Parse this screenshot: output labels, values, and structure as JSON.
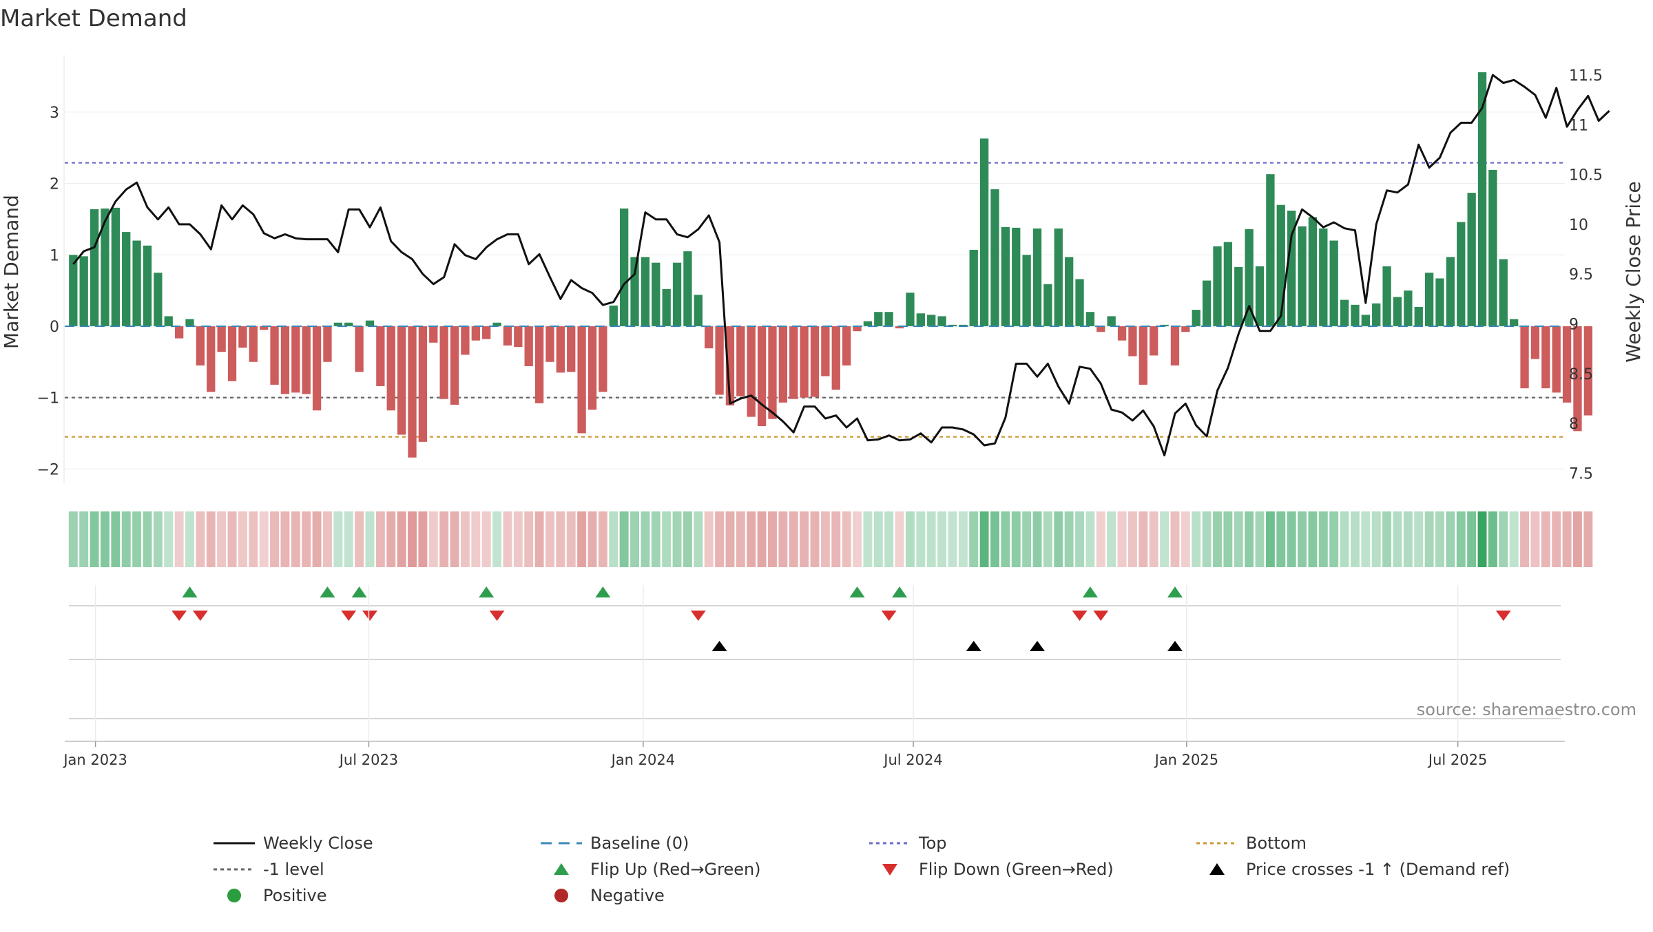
{
  "chart_data": {
    "type": "bar",
    "title": "Market Demand",
    "ylabel": "Market Demand",
    "y2label": "Weekly Close Price",
    "source": "source: sharemaestro.com",
    "ylim": [
      -2.2,
      3.8
    ],
    "y2lim": [
      7.4,
      11.7
    ],
    "yticks": [
      -2,
      -1,
      0,
      1,
      2,
      3
    ],
    "ytick_labels": [
      "−2",
      "−1",
      "0",
      "1",
      "2",
      "3"
    ],
    "y2ticks": [
      7.5,
      8,
      8.5,
      9,
      9.5,
      10,
      10.5,
      11,
      11.5
    ],
    "y2tick_labels": [
      "7.5",
      "8",
      "8.5",
      "9",
      "9.5",
      "10",
      "10.5",
      "11",
      "11.5"
    ],
    "x_range": [
      -0.8,
      140.8
    ],
    "date_ticks": [
      {
        "label": "Jan 2023",
        "x": 2.1
      },
      {
        "label": "Jul 2023",
        "x": 27.9
      },
      {
        "label": "Jan 2024",
        "x": 53.8
      },
      {
        "label": "Jul 2024",
        "x": 79.3
      },
      {
        "label": "Jan 2025",
        "x": 105.1
      },
      {
        "label": "Jul 2025",
        "x": 130.7
      }
    ],
    "reference_lines": {
      "baseline": 0,
      "top": 2.29,
      "minus1": -1,
      "bottom": -1.55
    },
    "demand": [
      1.0,
      0.98,
      1.64,
      1.65,
      1.66,
      1.32,
      1.2,
      1.13,
      0.75,
      0.14,
      -0.17,
      0.1,
      -0.55,
      -0.92,
      -0.36,
      -0.77,
      -0.3,
      -0.5,
      -0.05,
      -0.82,
      -0.95,
      -0.93,
      -0.95,
      -1.18,
      -0.5,
      0.05,
      0.05,
      -0.64,
      0.08,
      -0.84,
      -1.18,
      -1.52,
      -1.84,
      -1.62,
      -0.23,
      -1.02,
      -1.1,
      -0.4,
      -0.2,
      -0.18,
      0.05,
      -0.27,
      -0.29,
      -0.56,
      -1.08,
      -0.5,
      -0.65,
      -0.64,
      -1.5,
      -1.17,
      -0.92,
      0.29,
      1.65,
      0.97,
      0.97,
      0.89,
      0.52,
      0.89,
      1.05,
      0.44,
      -0.31,
      -0.96,
      -1.11,
      -0.98,
      -1.27,
      -1.4,
      -1.3,
      -1.07,
      -1.02,
      -1.0,
      -0.99,
      -0.7,
      -0.89,
      -0.55,
      -0.07,
      0.07,
      0.2,
      0.2,
      -0.03,
      0.47,
      0.18,
      0.16,
      0.14,
      0.02,
      0.02,
      1.07,
      2.63,
      1.92,
      1.39,
      1.38,
      1.0,
      1.37,
      0.59,
      1.37,
      0.97,
      0.66,
      0.2,
      -0.08,
      0.14,
      -0.2,
      -0.42,
      -0.82,
      -0.41,
      0.02,
      -0.55,
      -0.08,
      0.23,
      0.64,
      1.12,
      1.18,
      0.83,
      1.36,
      0.84,
      2.13,
      1.7,
      1.62,
      1.4,
      1.53,
      1.37,
      1.2,
      0.37,
      0.3,
      0.16,
      0.32,
      0.84,
      0.41,
      0.5,
      0.27,
      0.75,
      0.67,
      0.97,
      1.46,
      1.87,
      3.56,
      2.19,
      0.94,
      0.1,
      -0.87,
      -0.46,
      -0.87,
      -0.93,
      -1.07,
      -1.47,
      -1.25
    ],
    "weekly_close": [
      9.6,
      9.73,
      9.77,
      10.03,
      10.23,
      10.35,
      10.42,
      10.17,
      10.05,
      10.17,
      10.0,
      10.0,
      9.9,
      9.75,
      10.19,
      10.05,
      10.19,
      10.1,
      9.91,
      9.86,
      9.9,
      9.86,
      9.85,
      9.85,
      9.85,
      9.72,
      10.15,
      10.15,
      9.97,
      10.17,
      9.83,
      9.72,
      9.65,
      9.5,
      9.4,
      9.47,
      9.8,
      9.69,
      9.65,
      9.77,
      9.85,
      9.9,
      9.9,
      9.6,
      9.7,
      9.47,
      9.25,
      9.44,
      9.36,
      9.31,
      9.19,
      9.22,
      9.4,
      9.5,
      10.12,
      10.05,
      10.05,
      9.9,
      9.87,
      9.95,
      10.09,
      9.82,
      8.2,
      8.25,
      8.28,
      8.19,
      8.11,
      8.02,
      7.91,
      8.17,
      8.17,
      8.05,
      8.08,
      7.96,
      8.05,
      7.83,
      7.84,
      7.88,
      7.83,
      7.84,
      7.9,
      7.81,
      7.96,
      7.96,
      7.94,
      7.89,
      7.78,
      7.8,
      8.06,
      8.6,
      8.6,
      8.47,
      8.6,
      8.37,
      8.2,
      8.57,
      8.55,
      8.4,
      8.14,
      8.11,
      8.03,
      8.13,
      7.97,
      7.68,
      8.1,
      8.2,
      7.98,
      7.87,
      8.33,
      8.56,
      8.9,
      9.18,
      8.93,
      8.93,
      9.08,
      9.89,
      10.15,
      10.07,
      9.97,
      10.02,
      9.96,
      9.94,
      9.21,
      10.0,
      10.34,
      10.32,
      10.4,
      10.8,
      10.57,
      10.67,
      10.92,
      11.02,
      11.02,
      11.17,
      11.5,
      11.42,
      11.45,
      11.38,
      11.3,
      11.07,
      11.37,
      10.98,
      11.15,
      11.29,
      11.04,
      11.14
    ],
    "heat_strip": {
      "cap": 3.56
    },
    "flip_up": [
      11,
      24,
      27,
      39,
      50,
      74,
      78,
      96,
      104
    ],
    "flip_down": [
      10,
      12,
      26,
      28,
      40,
      59,
      77,
      95,
      97,
      135
    ],
    "price_cross": [
      61,
      85,
      91,
      104
    ],
    "legend": [
      {
        "label": "Weekly Close",
        "kind": "line",
        "color": "#111111"
      },
      {
        "label": "Baseline (0)",
        "kind": "dash-long",
        "color": "#3a88b8"
      },
      {
        "label": "Top",
        "kind": "dash-short",
        "color": "#6a6acb"
      },
      {
        "label": "Bottom",
        "kind": "dash-short",
        "color": "#cc9933"
      },
      {
        "label": "-1 level",
        "kind": "dash-short",
        "color": "#666666"
      },
      {
        "label": "Flip Up (Red→Green)",
        "kind": "tri-up",
        "color": "#2e9e4e"
      },
      {
        "label": "Flip Down (Green→Red)",
        "kind": "tri-down",
        "color": "#d92e2e"
      },
      {
        "label": "Price crosses -1 ↑ (Demand ref)",
        "kind": "tri-up",
        "color": "#000000"
      },
      {
        "label": "Positive",
        "kind": "dot",
        "color": "#2a9d3f"
      },
      {
        "label": "Negative",
        "kind": "dot",
        "color": "#b22828"
      }
    ],
    "colors": {
      "positive_bar": "#2e8b57",
      "negative_bar": "#cd5c5c",
      "close_line": "#111111",
      "baseline": "#3a88b8",
      "top": "#6a6acb",
      "bottom": "#cc9933",
      "minus1": "#666666",
      "grid": "#ececec",
      "axis": "#cccccc"
    }
  }
}
